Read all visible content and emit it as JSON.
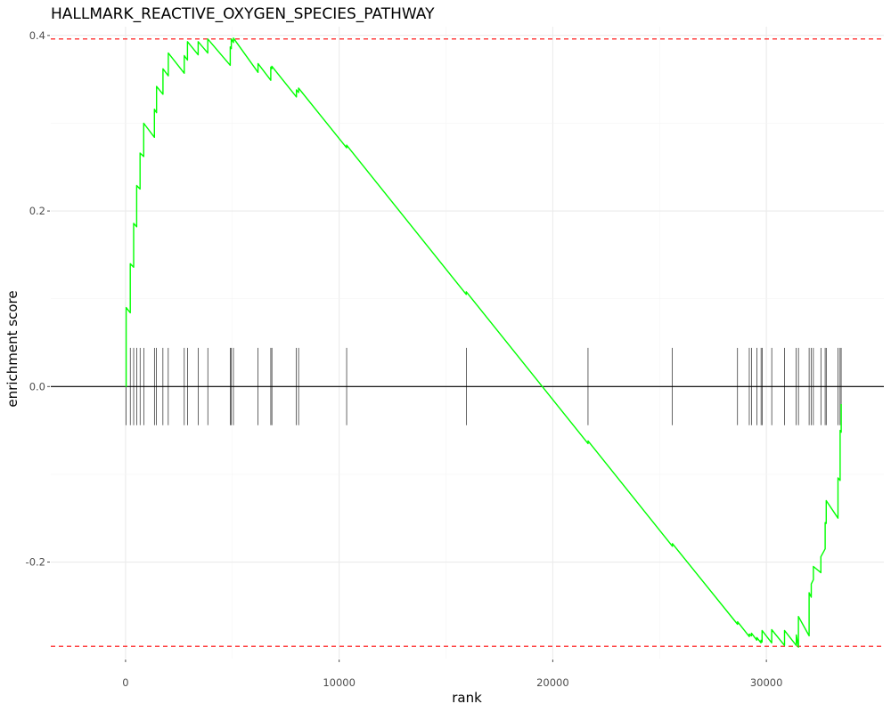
{
  "chart_data": {
    "type": "line",
    "title": "HALLMARK_REACTIVE_OXYGEN_SPECIES_PATHWAY",
    "xlabel": "rank",
    "ylabel": "enrichment score",
    "xlim": [
      -3500,
      35500
    ],
    "ylim": [
      -0.31,
      0.41
    ],
    "x_ticks": [
      0,
      10000,
      20000,
      30000
    ],
    "x_tick_labels": [
      "0",
      "10000",
      "20000",
      "30000"
    ],
    "y_ticks": [
      -0.2,
      0.0,
      0.2,
      0.4
    ],
    "y_tick_labels": [
      "-0.2",
      "0.0",
      "0.2",
      "0.4"
    ],
    "grid": true,
    "colors": {
      "curve": "#00ff00",
      "extreme_lines": "#ff0000",
      "zero_line": "#000000",
      "hits": "#000000",
      "grid": "#ebebeb"
    },
    "extreme_lines": [
      0.396,
      -0.296
    ],
    "zero_line": 0.0,
    "hit_band": [
      -0.044,
      0.044
    ],
    "hits": [
      30,
      220,
      380,
      520,
      680,
      850,
      1350,
      1450,
      1750,
      2000,
      2750,
      2900,
      3400,
      3850,
      4900,
      4950,
      5050,
      6200,
      6800,
      6850,
      8000,
      8100,
      10350,
      15950,
      21650,
      25600,
      28650,
      29200,
      29300,
      29550,
      29750,
      29800,
      30250,
      30850,
      31400,
      31500,
      32000,
      32100,
      32200,
      32550,
      32750,
      32800,
      33350,
      33450,
      33500
    ],
    "series": [
      {
        "x": [
          0,
          30,
          30,
          220,
          220,
          380,
          380,
          520,
          520,
          680,
          680,
          850,
          850,
          1350,
          1350,
          1450,
          1450,
          1750,
          1750,
          2000,
          2000,
          2750,
          2750,
          2900,
          2900,
          3400,
          3400,
          3850,
          3850,
          4900,
          4900,
          4950,
          4950,
          5050,
          5050,
          6200,
          6200,
          6800,
          6800,
          6850,
          6850,
          8000,
          8000,
          8100,
          8100,
          10350,
          10350,
          15950,
          15950,
          21650,
          21650,
          25600,
          25600,
          28650,
          28650,
          29200,
          29200,
          29300,
          29300,
          29550,
          29550,
          29750,
          29750,
          29800,
          29800,
          30250,
          30250,
          30850,
          30850,
          31400,
          31400,
          31500,
          31500,
          32000,
          32000,
          32100,
          32100,
          32200,
          32200,
          32550,
          32550,
          32750,
          32750,
          32800,
          32800,
          33350,
          33350,
          33450,
          33450,
          33500,
          33500
        ],
        "y": [
          0.0,
          0.0,
          0.09,
          0.084,
          0.14,
          0.136,
          0.186,
          0.182,
          0.229,
          0.225,
          0.266,
          0.262,
          0.3,
          0.284,
          0.316,
          0.312,
          0.342,
          0.333,
          0.362,
          0.354,
          0.38,
          0.357,
          0.377,
          0.372,
          0.393,
          0.378,
          0.393,
          0.38,
          0.396,
          0.366,
          0.387,
          0.385,
          0.396,
          0.392,
          0.397,
          0.358,
          0.368,
          0.349,
          0.364,
          0.362,
          0.365,
          0.33,
          0.338,
          0.335,
          0.34,
          0.272,
          0.275,
          0.105,
          0.108,
          -0.065,
          -0.062,
          -0.182,
          -0.179,
          -0.271,
          -0.268,
          -0.285,
          -0.282,
          -0.284,
          -0.281,
          -0.289,
          -0.286,
          -0.292,
          -0.289,
          -0.291,
          -0.278,
          -0.292,
          -0.277,
          -0.295,
          -0.278,
          -0.295,
          -0.283,
          -0.297,
          -0.262,
          -0.284,
          -0.235,
          -0.24,
          -0.225,
          -0.22,
          -0.205,
          -0.212,
          -0.194,
          -0.185,
          -0.155,
          -0.156,
          -0.13,
          -0.15,
          -0.104,
          -0.107,
          -0.05,
          -0.052,
          -0.02
        ]
      }
    ]
  }
}
